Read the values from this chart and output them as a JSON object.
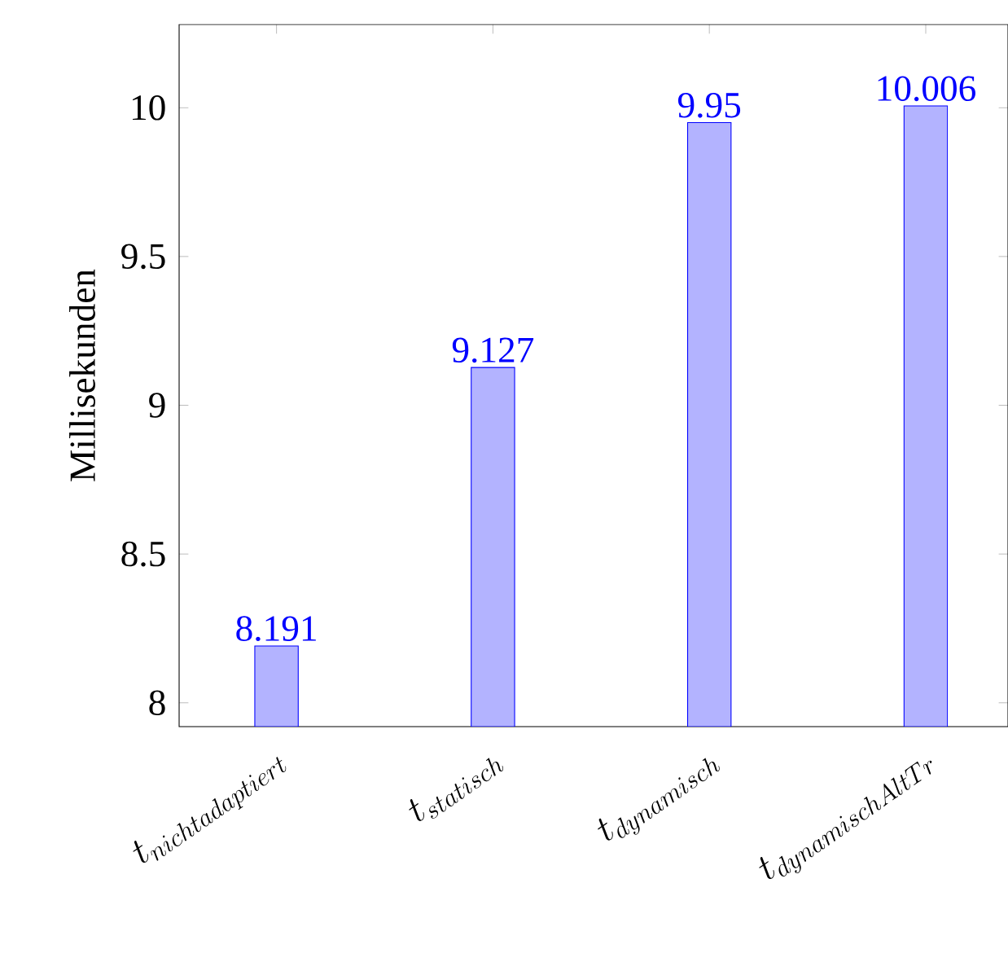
{
  "chart_data": {
    "type": "bar",
    "ylabel": "Millisekunden",
    "categories": [
      "t_{nichtadaptiert}",
      "t_{statisch}",
      "t_{dynamisch}",
      "t_{dynamischAltTr}"
    ],
    "values": [
      8.191,
      9.127,
      9.95,
      10.006
    ],
    "color": "#b3b3ff",
    "data_labels": true,
    "ylim": [
      7.92,
      10.28
    ],
    "yticks": [
      8,
      8.5,
      9,
      9.5,
      10
    ],
    "grid": false
  }
}
